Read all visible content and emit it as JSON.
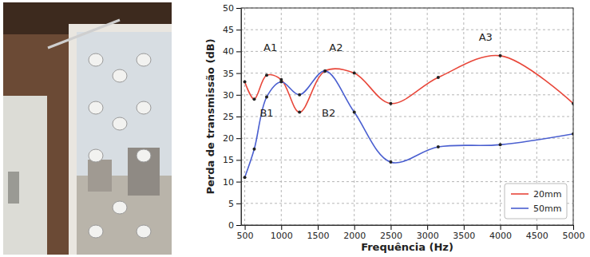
{
  "chart_data": {
    "type": "line",
    "x_label": "Frequência (Hz)",
    "y_label": "Perda de transmissão (dB)",
    "x": [
      500,
      630,
      800,
      1000,
      1250,
      1600,
      2000,
      2500,
      3150,
      4000,
      5000
    ],
    "series": [
      {
        "name": "20mm",
        "color": "#e8473a",
        "marker": "circle",
        "values": [
          33,
          29,
          34.5,
          33.5,
          26,
          35.5,
          35,
          28,
          34,
          39,
          28
        ]
      },
      {
        "name": "50mm",
        "color": "#4a5fd0",
        "marker": "circle",
        "values": [
          11,
          17.5,
          29.5,
          33,
          30,
          35.5,
          26,
          14.5,
          18,
          18.5,
          21
        ]
      }
    ],
    "annotations": [
      {
        "text": "A1",
        "x": 850,
        "y": 40
      },
      {
        "text": "A2",
        "x": 1750,
        "y": 40
      },
      {
        "text": "A3",
        "x": 3800,
        "y": 42.5
      },
      {
        "text": "B1",
        "x": 800,
        "y": 25
      },
      {
        "text": "B2",
        "x": 1650,
        "y": 25
      }
    ],
    "xlim": [
      450,
      5000
    ],
    "xticks": [
      500,
      1000,
      1500,
      2000,
      2500,
      3000,
      3500,
      4000,
      4500,
      5000
    ],
    "ylim": [
      0,
      50
    ],
    "yticks": [
      0,
      5,
      10,
      15,
      20,
      25,
      30,
      35,
      40,
      45,
      50
    ],
    "grid": true,
    "legend": "lower right"
  }
}
